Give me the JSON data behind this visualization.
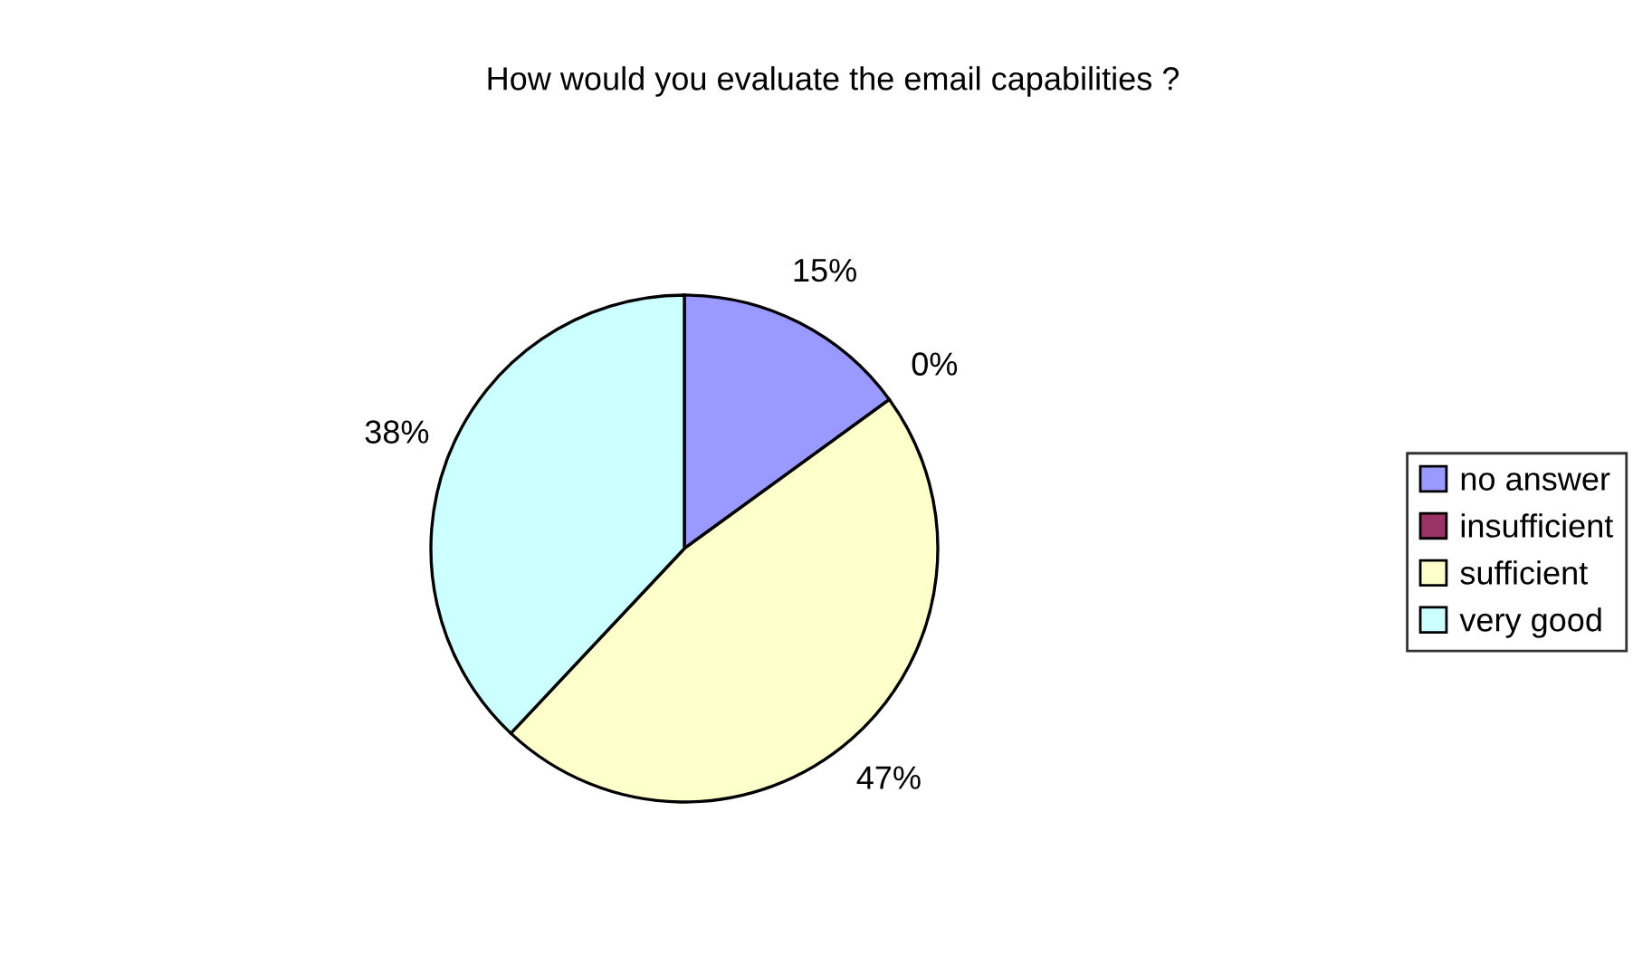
{
  "chart_data": {
    "type": "pie",
    "title": "How would you evaluate the email capabilities ?",
    "categories": [
      "no answer",
      "insufficient",
      "sufficient",
      "very good"
    ],
    "values": [
      15,
      0,
      47,
      38
    ],
    "value_labels": [
      "15%",
      "0%",
      "47%",
      "38%"
    ],
    "colors": [
      "#9999ff",
      "#993366",
      "#ffffcc",
      "#ccffff"
    ],
    "legend": "right"
  }
}
